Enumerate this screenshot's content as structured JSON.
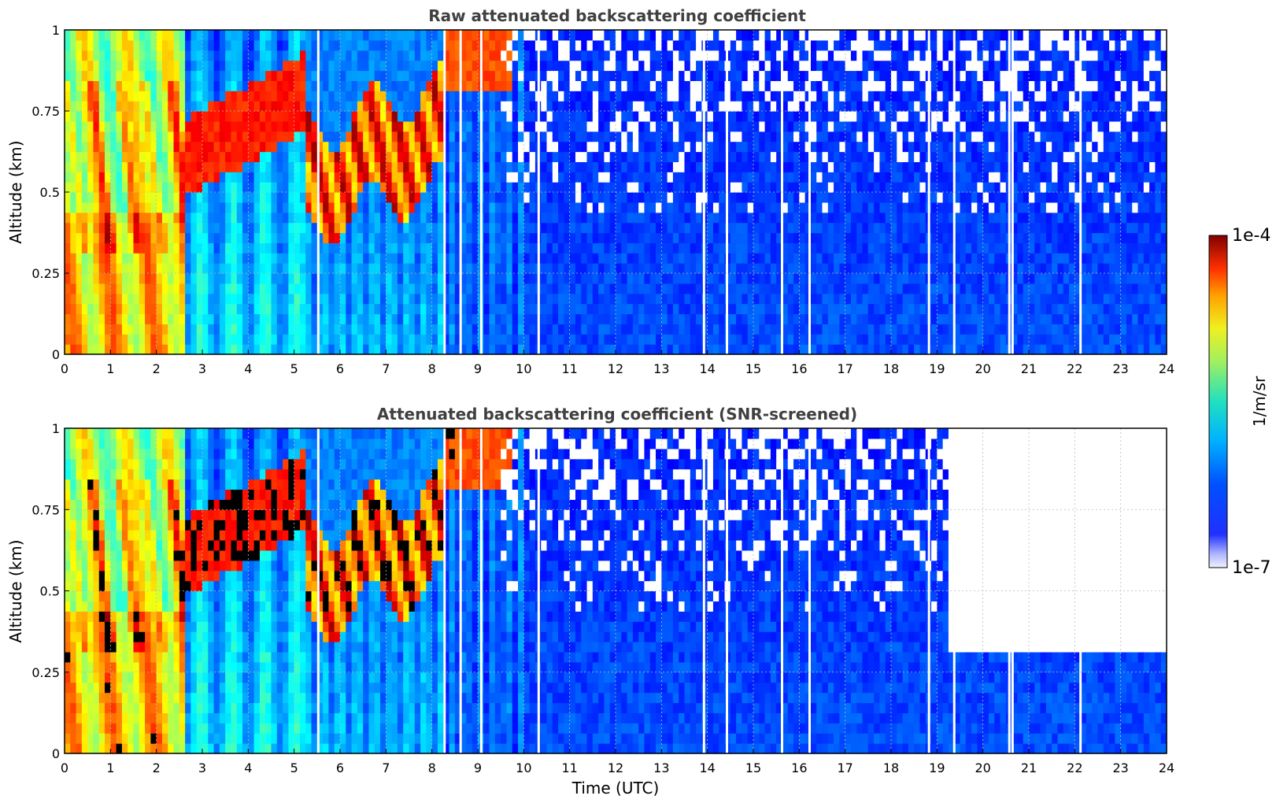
{
  "chart_data": [
    {
      "type": "heatmap",
      "title": "Raw attenuated backscattering coefficient",
      "ylabel": "Altitude (km)",
      "xlabel": "",
      "xlim": [
        0,
        24
      ],
      "ylim": [
        0,
        1
      ],
      "x_ticks": [
        "0",
        "1",
        "2",
        "3",
        "4",
        "5",
        "6",
        "7",
        "8",
        "9",
        "10",
        "11",
        "12",
        "13",
        "14",
        "15",
        "16",
        "17",
        "18",
        "19",
        "20",
        "21",
        "22",
        "23",
        "24"
      ],
      "y_ticks": [
        "0",
        "0.25",
        "0.5",
        "0.75",
        "1"
      ],
      "grid": true,
      "screened": false
    },
    {
      "type": "heatmap",
      "title": "Attenuated backscattering coefficient (SNR-screened)",
      "ylabel": "Altitude (km)",
      "xlabel": "Time (UTC)",
      "xlim": [
        0,
        24
      ],
      "ylim": [
        0,
        1
      ],
      "x_ticks": [
        "0",
        "1",
        "2",
        "3",
        "4",
        "5",
        "6",
        "7",
        "8",
        "9",
        "10",
        "11",
        "12",
        "13",
        "14",
        "15",
        "16",
        "17",
        "18",
        "19",
        "20",
        "21",
        "22",
        "23",
        "24"
      ],
      "y_ticks": [
        "0",
        "0.25",
        "0.5",
        "0.75",
        "1"
      ],
      "grid": true,
      "screened": true
    }
  ],
  "colorbar": {
    "label": "1/m/sr",
    "max_label": "1e-4",
    "min_label": "1e-7",
    "colormap": "jet",
    "scale": "log"
  },
  "colors": {
    "title": "#404040",
    "grid": "#bbbbbb",
    "mask": "#ffffff"
  }
}
